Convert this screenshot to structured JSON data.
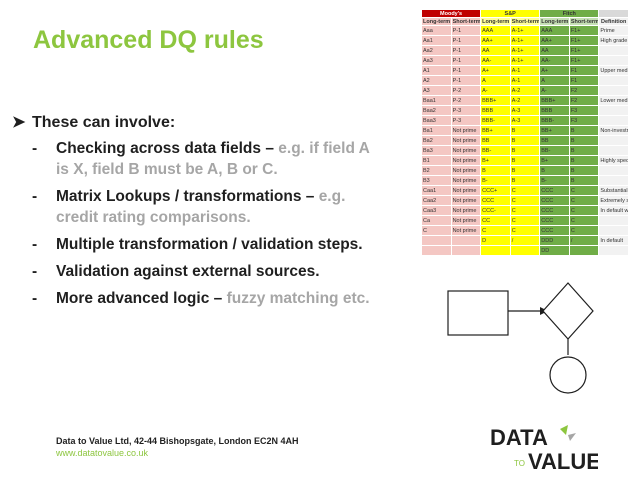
{
  "slide": {
    "title": "Advanced DQ rules",
    "lead": "These can involve:",
    "bullets": [
      {
        "main": "Checking across data fields – ",
        "grey": "e.g. if field A is X, field B must be A, B or C."
      },
      {
        "main": "Matrix Lookups / transformations – ",
        "grey": "e.g. credit rating comparisons."
      },
      {
        "main": "Multiple transformation / validation steps.",
        "grey": ""
      },
      {
        "main": "Validation against external sources.",
        "grey": ""
      },
      {
        "main": "More advanced logic – ",
        "grey": "fuzzy matching etc."
      }
    ]
  },
  "footer": {
    "address": "Data to Value Ltd, 42-44 Bishopsgate, London EC2N 4AH",
    "url": "www.datatovalue.co.uk"
  },
  "logo": {
    "line1": "DATA",
    "to": "TO",
    "line2": "VALUE"
  },
  "colors": {
    "accent": "#8dc63f",
    "dark_red": "#c00000",
    "pink": "#f4c7c3",
    "yellow": "#ffff00",
    "green": "#70ad47",
    "gray": "#d9d9d9"
  },
  "rating_table": {
    "groups": [
      "Moody's",
      "S&P",
      "Fitch",
      ""
    ],
    "headers": [
      "Long-term",
      "Short-term",
      "Long-term",
      "Short-term",
      "Long-term",
      "Short-term",
      "Definition"
    ],
    "rows": [
      [
        "Aaa",
        "P-1",
        "AAA",
        "A-1+",
        "AAA",
        "F1+",
        "Prime"
      ],
      [
        "Aa1",
        "P-1",
        "AA+",
        "A-1+",
        "AA+",
        "F1+",
        "High grade"
      ],
      [
        "Aa2",
        "P-1",
        "AA",
        "A-1+",
        "AA",
        "F1+",
        ""
      ],
      [
        "Aa3",
        "P-1",
        "AA-",
        "A-1+",
        "AA-",
        "F1+",
        ""
      ],
      [
        "A1",
        "P-1",
        "A+",
        "A-1",
        "A+",
        "F1",
        "Upper medium grade"
      ],
      [
        "A2",
        "P-1",
        "A",
        "A-1",
        "A",
        "F1",
        ""
      ],
      [
        "A3",
        "P-2",
        "A-",
        "A-2",
        "A-",
        "F2",
        ""
      ],
      [
        "Baa1",
        "P-2",
        "BBB+",
        "A-2",
        "BBB+",
        "F2",
        "Lower medium grade"
      ],
      [
        "Baa2",
        "P-3",
        "BBB",
        "A-3",
        "BBB",
        "F3",
        ""
      ],
      [
        "Baa3",
        "P-3",
        "BBB-",
        "A-3",
        "BBB-",
        "F3",
        ""
      ],
      [
        "Ba1",
        "Not prime",
        "BB+",
        "B",
        "BB+",
        "B",
        "Non-investment grade speculative"
      ],
      [
        "Ba2",
        "Not prime",
        "BB",
        "B",
        "BB",
        "B",
        ""
      ],
      [
        "Ba3",
        "Not prime",
        "BB-",
        "B",
        "BB-",
        "B",
        ""
      ],
      [
        "B1",
        "Not prime",
        "B+",
        "B",
        "B+",
        "B",
        "Highly speculative"
      ],
      [
        "B2",
        "Not prime",
        "B",
        "B",
        "B",
        "B",
        ""
      ],
      [
        "B3",
        "Not prime",
        "B-",
        "B",
        "B-",
        "B",
        ""
      ],
      [
        "Caa1",
        "Not prime",
        "CCC+",
        "C",
        "CCC",
        "C",
        "Substantial risks"
      ],
      [
        "Caa2",
        "Not prime",
        "CCC",
        "C",
        "CCC",
        "C",
        "Extremely speculative"
      ],
      [
        "Caa3",
        "Not prime",
        "CCC-",
        "C",
        "CCC",
        "C",
        "In default with little prospect for recovery"
      ],
      [
        "Ca",
        "Not prime",
        "CC",
        "C",
        "CCC",
        "C",
        ""
      ],
      [
        "C",
        "Not prime",
        "C",
        "C",
        "CCC",
        "C",
        ""
      ],
      [
        "",
        "",
        "D",
        "/",
        "DDD",
        "/",
        "In default"
      ],
      [
        "",
        "",
        "",
        "",
        "DD",
        "",
        ""
      ]
    ]
  }
}
